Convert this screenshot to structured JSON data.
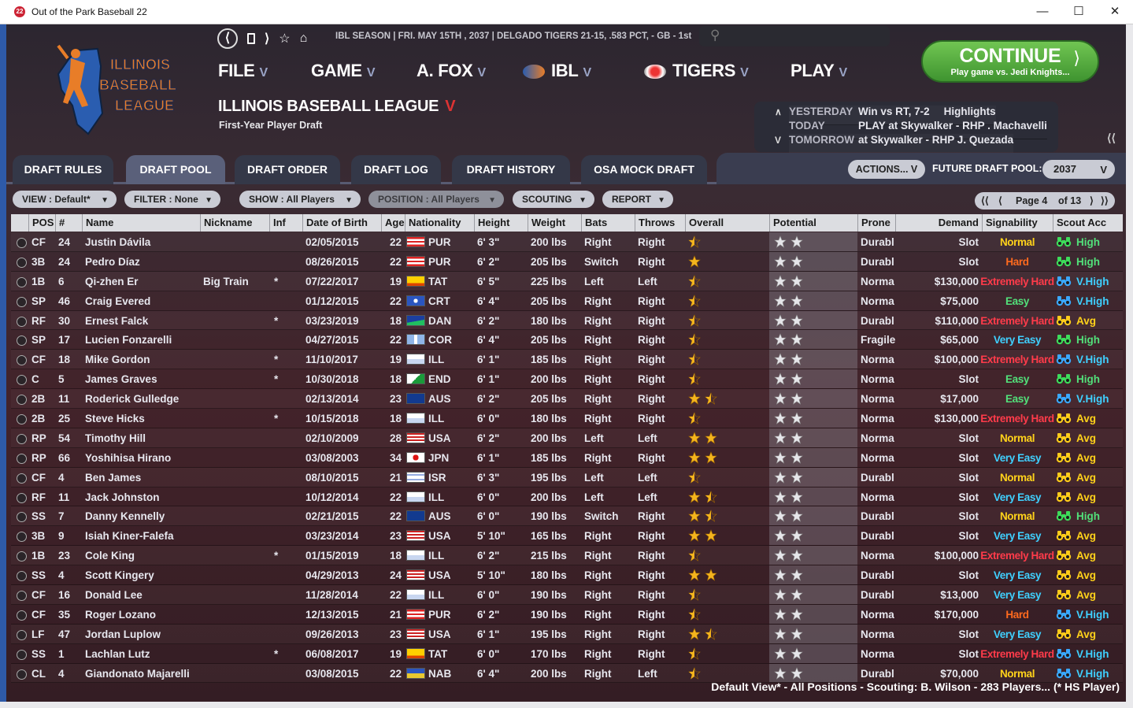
{
  "window": {
    "title": "Out of the Park Baseball 22"
  },
  "header": {
    "status": "IBL SEASON  |  FRI. MAY 15TH , 2037  |  DELGADO TIGERS  21-15, .583 PCT, - GB - 1st",
    "logo_text": [
      "ILLINOIS",
      "BASEBALL",
      "LEAGUE"
    ],
    "menus": [
      "FILE",
      "GAME",
      "A. FOX",
      "IBL",
      "TIGERS",
      "PLAY"
    ],
    "league_title": "ILLINOIS BASEBALL LEAGUE",
    "subtitle": "First-Year Player Draft",
    "continue_label": "CONTINUE",
    "continue_sub": "Play game vs. Jedi Knights...",
    "schedule": [
      {
        "label": "YESTERDAY",
        "value": "Win vs RT, 7-2",
        "extra": "Highlights"
      },
      {
        "label": "TODAY",
        "value": "PLAY at Skywalker - RHP . Machavelli",
        "extra": ""
      },
      {
        "label": "TOMORROW",
        "value": "at Skywalker - RHP J. Quezada",
        "extra": ""
      }
    ]
  },
  "tabs": [
    "DRAFT RULES",
    "DRAFT POOL",
    "DRAFT ORDER",
    "DRAFT LOG",
    "DRAFT HISTORY",
    "OSA MOCK DRAFT"
  ],
  "active_tab": "DRAFT POOL",
  "toolbar": {
    "actions": "ACTIONS...",
    "future_pool_label": "FUTURE DRAFT POOL:",
    "future_pool_year": "2037"
  },
  "filters": {
    "view": "VIEW : Default*",
    "filter": "FILTER : None",
    "show": "SHOW : All Players",
    "position": "POSITION : All Players",
    "scouting": "SCOUTING",
    "report": "REPORT"
  },
  "pager": {
    "label": "Page 4",
    "of": "of 13"
  },
  "columns": [
    "POS",
    "#",
    "Name",
    "Nickname",
    "Inf",
    "Date of Birth",
    "Age",
    "Nationality",
    "Height",
    "Weight",
    "Bats",
    "Throws",
    "Overall",
    "Potential",
    "Prone",
    "Demand",
    "Signability",
    "Scout Acc"
  ],
  "colors": {
    "normal": "#ffd21a",
    "hard": "#ff6a1e",
    "xhard": "#ff3b4a",
    "easy": "#52e07a",
    "veasy": "#3fd0ff",
    "high": "#52e07a",
    "vhigh": "#3fd0ff",
    "avg": "#ffd21a",
    "bino_green": "#3ddc5a",
    "bino_blue": "#3aa8ff",
    "bino_yellow": "#ffcc1a"
  },
  "players": [
    {
      "pos": "CF",
      "num": "24",
      "name": "Justin Dávila",
      "nick": "",
      "inf": "",
      "dob": "02/05/2015",
      "age": "22",
      "nat": "PUR",
      "flag": "pur",
      "ht": "6' 3\"",
      "wt": "200 lbs",
      "bats": "Right",
      "thr": "Right",
      "ov": 0.5,
      "pot": 2,
      "prone": "Durabl",
      "demand": "Slot",
      "sign": "Normal",
      "sc": "normal",
      "acc": "High",
      "ac": "high"
    },
    {
      "pos": "3B",
      "num": "24",
      "name": "Pedro Díaz",
      "nick": "",
      "inf": "",
      "dob": "08/26/2015",
      "age": "22",
      "nat": "PUR",
      "flag": "pur",
      "ht": "6' 2\"",
      "wt": "205 lbs",
      "bats": "Switch",
      "thr": "Right",
      "ov": 1,
      "pot": 2,
      "prone": "Durabl",
      "demand": "Slot",
      "sign": "Hard",
      "sc": "hard",
      "acc": "High",
      "ac": "high"
    },
    {
      "pos": "1B",
      "num": "6",
      "name": "Qi-zhen Er",
      "nick": "Big Train",
      "inf": "*",
      "dob": "07/22/2017",
      "age": "19",
      "nat": "TAT",
      "flag": "tat",
      "ht": "6' 5\"",
      "wt": "225 lbs",
      "bats": "Left",
      "thr": "Left",
      "ov": 0.5,
      "pot": 2,
      "prone": "Norma",
      "demand": "$130,000",
      "sign": "Extremely Hard",
      "sc": "xhard",
      "acc": "V.High",
      "ac": "vhigh"
    },
    {
      "pos": "SP",
      "num": "46",
      "name": "Craig Evered",
      "nick": "",
      "inf": "",
      "dob": "01/12/2015",
      "age": "22",
      "nat": "CRT",
      "flag": "crt",
      "ht": "6' 4\"",
      "wt": "205 lbs",
      "bats": "Right",
      "thr": "Right",
      "ov": 0.5,
      "pot": 2,
      "prone": "Norma",
      "demand": "$75,000",
      "sign": "Easy",
      "sc": "easy",
      "acc": "V.High",
      "ac": "vhigh"
    },
    {
      "pos": "RF",
      "num": "30",
      "name": "Ernest Falck",
      "nick": "",
      "inf": "*",
      "dob": "03/23/2019",
      "age": "18",
      "nat": "DAN",
      "flag": "dan",
      "ht": "6' 2\"",
      "wt": "180 lbs",
      "bats": "Right",
      "thr": "Right",
      "ov": 0.5,
      "pot": 2,
      "prone": "Durabl",
      "demand": "$110,000",
      "sign": "Extremely Hard",
      "sc": "xhard",
      "acc": "Avg",
      "ac": "avg"
    },
    {
      "pos": "SP",
      "num": "17",
      "name": "Lucien Fonzarelli",
      "nick": "",
      "inf": "",
      "dob": "04/27/2015",
      "age": "22",
      "nat": "COR",
      "flag": "cor",
      "ht": "6' 4\"",
      "wt": "205 lbs",
      "bats": "Right",
      "thr": "Right",
      "ov": 0.5,
      "pot": 2,
      "prone": "Fragile",
      "demand": "$65,000",
      "sign": "Very Easy",
      "sc": "veasy",
      "acc": "High",
      "ac": "high"
    },
    {
      "pos": "CF",
      "num": "18",
      "name": "Mike Gordon",
      "nick": "",
      "inf": "*",
      "dob": "11/10/2017",
      "age": "19",
      "nat": "ILL",
      "flag": "ill",
      "ht": "6' 1\"",
      "wt": "185 lbs",
      "bats": "Right",
      "thr": "Right",
      "ov": 0.5,
      "pot": 2,
      "prone": "Norma",
      "demand": "$100,000",
      "sign": "Extremely Hard",
      "sc": "xhard",
      "acc": "V.High",
      "ac": "vhigh"
    },
    {
      "pos": "C",
      "num": "5",
      "name": "James Graves",
      "nick": "",
      "inf": "*",
      "dob": "10/30/2018",
      "age": "18",
      "nat": "END",
      "flag": "end",
      "ht": "6' 1\"",
      "wt": "200 lbs",
      "bats": "Right",
      "thr": "Right",
      "ov": 0.5,
      "pot": 2,
      "prone": "Norma",
      "demand": "Slot",
      "sign": "Easy",
      "sc": "easy",
      "acc": "High",
      "ac": "high"
    },
    {
      "pos": "2B",
      "num": "11",
      "name": "Roderick Gulledge",
      "nick": "",
      "inf": "",
      "dob": "02/13/2014",
      "age": "23",
      "nat": "AUS",
      "flag": "aus",
      "ht": "6' 2\"",
      "wt": "205 lbs",
      "bats": "Right",
      "thr": "Right",
      "ov": 1.5,
      "pot": 2,
      "prone": "Norma",
      "demand": "$17,000",
      "sign": "Easy",
      "sc": "easy",
      "acc": "V.High",
      "ac": "vhigh"
    },
    {
      "pos": "2B",
      "num": "25",
      "name": "Steve Hicks",
      "nick": "",
      "inf": "*",
      "dob": "10/15/2018",
      "age": "18",
      "nat": "ILL",
      "flag": "ill",
      "ht": "6' 0\"",
      "wt": "180 lbs",
      "bats": "Right",
      "thr": "Right",
      "ov": 0.5,
      "pot": 2,
      "prone": "Norma",
      "demand": "$130,000",
      "sign": "Extremely Hard",
      "sc": "xhard",
      "acc": "Avg",
      "ac": "avg"
    },
    {
      "pos": "RP",
      "num": "54",
      "name": "Timothy Hill",
      "nick": "",
      "inf": "",
      "dob": "02/10/2009",
      "age": "28",
      "nat": "USA",
      "flag": "usa",
      "ht": "6' 2\"",
      "wt": "200 lbs",
      "bats": "Left",
      "thr": "Left",
      "ov": 2,
      "pot": 2,
      "prone": "Norma",
      "demand": "Slot",
      "sign": "Normal",
      "sc": "normal",
      "acc": "Avg",
      "ac": "avg"
    },
    {
      "pos": "RP",
      "num": "66",
      "name": "Yoshihisa Hirano",
      "nick": "",
      "inf": "",
      "dob": "03/08/2003",
      "age": "34",
      "nat": "JPN",
      "flag": "jpn",
      "ht": "6' 1\"",
      "wt": "185 lbs",
      "bats": "Right",
      "thr": "Right",
      "ov": 2,
      "pot": 2,
      "prone": "Norma",
      "demand": "Slot",
      "sign": "Very Easy",
      "sc": "veasy",
      "acc": "Avg",
      "ac": "avg"
    },
    {
      "pos": "CF",
      "num": "4",
      "name": "Ben James",
      "nick": "",
      "inf": "",
      "dob": "08/10/2015",
      "age": "21",
      "nat": "ISR",
      "flag": "isr",
      "ht": "6' 3\"",
      "wt": "195 lbs",
      "bats": "Left",
      "thr": "Left",
      "ov": 0.5,
      "pot": 2,
      "prone": "Durabl",
      "demand": "Slot",
      "sign": "Normal",
      "sc": "normal",
      "acc": "Avg",
      "ac": "avg"
    },
    {
      "pos": "RF",
      "num": "11",
      "name": "Jack Johnston",
      "nick": "",
      "inf": "",
      "dob": "10/12/2014",
      "age": "22",
      "nat": "ILL",
      "flag": "ill",
      "ht": "6' 0\"",
      "wt": "200 lbs",
      "bats": "Left",
      "thr": "Left",
      "ov": 1.5,
      "pot": 2,
      "prone": "Norma",
      "demand": "Slot",
      "sign": "Very Easy",
      "sc": "veasy",
      "acc": "Avg",
      "ac": "avg"
    },
    {
      "pos": "SS",
      "num": "7",
      "name": "Danny Kennelly",
      "nick": "",
      "inf": "",
      "dob": "02/21/2015",
      "age": "22",
      "nat": "AUS",
      "flag": "aus",
      "ht": "6' 0\"",
      "wt": "190 lbs",
      "bats": "Switch",
      "thr": "Right",
      "ov": 1.5,
      "pot": 2,
      "prone": "Durabl",
      "demand": "Slot",
      "sign": "Normal",
      "sc": "normal",
      "acc": "High",
      "ac": "high"
    },
    {
      "pos": "3B",
      "num": "9",
      "name": "Isiah Kiner-Falefa",
      "nick": "",
      "inf": "",
      "dob": "03/23/2014",
      "age": "23",
      "nat": "USA",
      "flag": "usa",
      "ht": "5' 10\"",
      "wt": "165 lbs",
      "bats": "Right",
      "thr": "Right",
      "ov": 2,
      "pot": 2,
      "prone": "Durabl",
      "demand": "Slot",
      "sign": "Very Easy",
      "sc": "veasy",
      "acc": "Avg",
      "ac": "avg"
    },
    {
      "pos": "1B",
      "num": "23",
      "name": "Cole King",
      "nick": "",
      "inf": "*",
      "dob": "01/15/2019",
      "age": "18",
      "nat": "ILL",
      "flag": "ill",
      "ht": "6' 2\"",
      "wt": "215 lbs",
      "bats": "Right",
      "thr": "Right",
      "ov": 0.5,
      "pot": 2,
      "prone": "Norma",
      "demand": "$100,000",
      "sign": "Extremely Hard",
      "sc": "xhard",
      "acc": "Avg",
      "ac": "avg"
    },
    {
      "pos": "SS",
      "num": "4",
      "name": "Scott Kingery",
      "nick": "",
      "inf": "",
      "dob": "04/29/2013",
      "age": "24",
      "nat": "USA",
      "flag": "usa",
      "ht": "5' 10\"",
      "wt": "180 lbs",
      "bats": "Right",
      "thr": "Right",
      "ov": 2,
      "pot": 2,
      "prone": "Durabl",
      "demand": "Slot",
      "sign": "Very Easy",
      "sc": "veasy",
      "acc": "Avg",
      "ac": "avg"
    },
    {
      "pos": "CF",
      "num": "16",
      "name": "Donald Lee",
      "nick": "",
      "inf": "",
      "dob": "11/28/2014",
      "age": "22",
      "nat": "ILL",
      "flag": "ill",
      "ht": "6' 0\"",
      "wt": "190 lbs",
      "bats": "Right",
      "thr": "Right",
      "ov": 0.5,
      "pot": 2,
      "prone": "Durabl",
      "demand": "$13,000",
      "sign": "Very Easy",
      "sc": "veasy",
      "acc": "Avg",
      "ac": "avg"
    },
    {
      "pos": "CF",
      "num": "35",
      "name": "Roger Lozano",
      "nick": "",
      "inf": "",
      "dob": "12/13/2015",
      "age": "21",
      "nat": "PUR",
      "flag": "pur",
      "ht": "6' 2\"",
      "wt": "190 lbs",
      "bats": "Right",
      "thr": "Right",
      "ov": 0.5,
      "pot": 2,
      "prone": "Norma",
      "demand": "$170,000",
      "sign": "Hard",
      "sc": "hard",
      "acc": "V.High",
      "ac": "vhigh"
    },
    {
      "pos": "LF",
      "num": "47",
      "name": "Jordan Luplow",
      "nick": "",
      "inf": "",
      "dob": "09/26/2013",
      "age": "23",
      "nat": "USA",
      "flag": "usa",
      "ht": "6' 1\"",
      "wt": "195 lbs",
      "bats": "Right",
      "thr": "Right",
      "ov": 1.5,
      "pot": 2,
      "prone": "Norma",
      "demand": "Slot",
      "sign": "Very Easy",
      "sc": "veasy",
      "acc": "Avg",
      "ac": "avg"
    },
    {
      "pos": "SS",
      "num": "1",
      "name": "Lachlan Lutz",
      "nick": "",
      "inf": "*",
      "dob": "06/08/2017",
      "age": "19",
      "nat": "TAT",
      "flag": "tat",
      "ht": "6' 0\"",
      "wt": "170 lbs",
      "bats": "Right",
      "thr": "Right",
      "ov": 0.5,
      "pot": 2,
      "prone": "Norma",
      "demand": "Slot",
      "sign": "Extremely Hard",
      "sc": "xhard",
      "acc": "V.High",
      "ac": "vhigh"
    },
    {
      "pos": "CL",
      "num": "4",
      "name": "Giandonato Majarelli",
      "nick": "",
      "inf": "",
      "dob": "03/08/2015",
      "age": "22",
      "nat": "NAB",
      "flag": "nab",
      "ht": "6' 4\"",
      "wt": "200 lbs",
      "bats": "Right",
      "thr": "Left",
      "ov": 0.5,
      "pot": 2,
      "prone": "Durabl",
      "demand": "$70,000",
      "sign": "Normal",
      "sc": "normal",
      "acc": "V.High",
      "ac": "vhigh"
    }
  ],
  "footer": "Default View* - All Positions - Scouting: B. Wilson - 283 Players... (* HS Player)"
}
